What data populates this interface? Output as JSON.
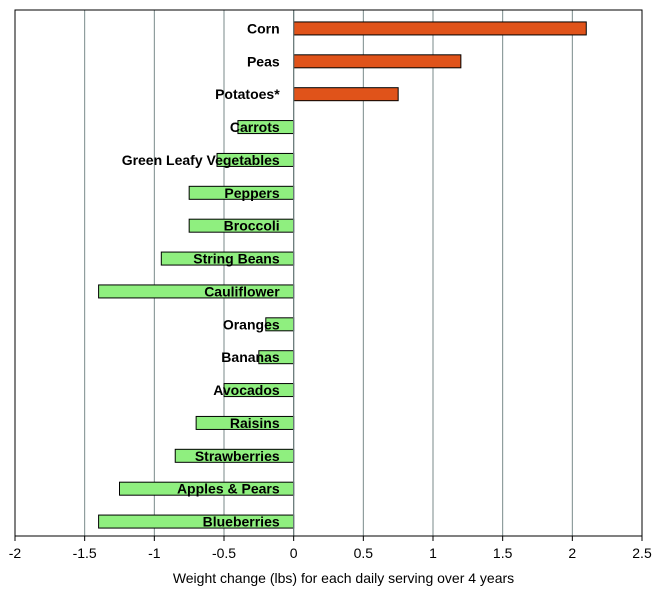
{
  "chart_data": {
    "type": "bar",
    "orientation": "horizontal",
    "title": "",
    "xlabel": "Weight change (lbs) for each daily serving over 4 years",
    "ylabel": "",
    "xlim": [
      -2,
      2.5
    ],
    "xticks": [
      "-2",
      "-1.5",
      "-1",
      "-0.5",
      "0",
      "0.5",
      "1",
      "1.5",
      "2",
      "2.5"
    ],
    "grid": true,
    "categories": [
      "Corn",
      "Peas",
      "Potatoes*",
      "Carrots",
      "Green Leafy Vegetables",
      "Peppers",
      "Broccoli",
      "String Beans",
      "Cauliflower",
      "Oranges",
      "Bananas",
      "Avocados",
      "Raisins",
      "Strawberries",
      "Apples & Pears",
      "Blueberries"
    ],
    "values": [
      2.1,
      1.2,
      0.75,
      -0.4,
      -0.55,
      -0.75,
      -0.75,
      -0.95,
      -1.4,
      -0.2,
      -0.25,
      -0.5,
      -0.7,
      -0.85,
      -1.25,
      -1.4
    ],
    "colors": {
      "positive": "#e0531a",
      "negative": "#8fef7f",
      "stroke": "#000000",
      "grid": "#7a8a8a"
    }
  }
}
